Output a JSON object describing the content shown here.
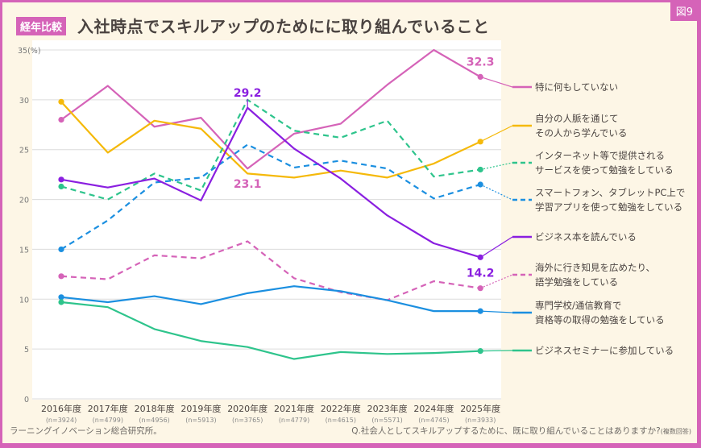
{
  "header": {
    "badge": "経年比較",
    "title": "入社時点でスキルアップのためにに取り組んでいること",
    "figure_label": "図9"
  },
  "footer": {
    "source": "ラーニングイノベーション総合研究所。",
    "question": "Q.社会人としてスキルアップするために、既に取り組んでいることはありますか?",
    "question_note": "(複数回答)"
  },
  "chart_data": {
    "type": "line",
    "title": "入社時点でスキルアップのためにに取り組んでいること",
    "ylabel": "(%)",
    "ylim": [
      0,
      35
    ],
    "yticks": [
      0,
      5,
      10,
      15,
      20,
      25,
      30,
      35
    ],
    "ytick_labels": [
      "0",
      "5",
      "10",
      "15",
      "20",
      "25",
      "30",
      "35(%)"
    ],
    "grid": true,
    "legend": "right",
    "categories": [
      "2016年度",
      "2017年度",
      "2018年度",
      "2019年度",
      "2020年度",
      "2021年度",
      "2022年度",
      "2023年度",
      "2024年度",
      "2025年度"
    ],
    "sample_sizes": [
      "(n=3924)",
      "(n=4799)",
      "(n=4956)",
      "(n=5913)",
      "(n=3765)",
      "(n=4779)",
      "(n=4615)",
      "(n=5571)",
      "(n=4745)",
      "(n=3933)"
    ],
    "series": [
      {
        "name": "特に何もしていない",
        "lines": [
          "特に何もしていない"
        ],
        "color": "#d563b8",
        "dashed": false,
        "values": [
          28.0,
          31.4,
          27.3,
          28.2,
          23.1,
          26.6,
          27.6,
          31.5,
          35.0,
          32.3
        ]
      },
      {
        "name": "自分の人脈を通じてその人から学んでいる",
        "lines": [
          "自分の人脈を通じて",
          "その人から学んでいる"
        ],
        "color": "#f5b90a",
        "dashed": false,
        "values": [
          29.8,
          24.7,
          27.9,
          27.1,
          22.6,
          22.2,
          22.9,
          22.2,
          23.6,
          25.8
        ]
      },
      {
        "name": "インターネット等で提供されるサービスを使って勉強をしている",
        "lines": [
          "インターネット等で提供される",
          "サービスを使って勉強をしている"
        ],
        "color": "#2ec48c",
        "dashed": true,
        "values": [
          21.3,
          20.0,
          22.6,
          20.9,
          30.0,
          26.9,
          26.2,
          27.9,
          22.3,
          23.0
        ]
      },
      {
        "name": "スマートフォン、タブレットPC上で学習アプリを使って勉強をしている",
        "lines": [
          "スマートフォン、タブレットPC上で",
          "学習アプリを使って勉強をしている"
        ],
        "color": "#1b8fe0",
        "dashed": true,
        "values": [
          15.0,
          17.9,
          21.7,
          22.2,
          25.5,
          23.2,
          23.9,
          23.1,
          20.1,
          21.5
        ]
      },
      {
        "name": "ビジネス本を読んでいる",
        "lines": [
          "ビジネス本を読んでいる"
        ],
        "color": "#8a1fe0",
        "dashed": false,
        "values": [
          22.0,
          21.2,
          22.1,
          19.9,
          29.2,
          25.1,
          22.1,
          18.4,
          15.6,
          14.2
        ]
      },
      {
        "name": "海外に行き知見を広めたり、語学勉強をしている",
        "lines": [
          "海外に行き知見を広めたり、",
          "語学勉強をしている"
        ],
        "color": "#d563b8",
        "dashed": true,
        "values": [
          12.3,
          12.0,
          14.4,
          14.1,
          15.8,
          12.1,
          10.7,
          9.9,
          11.8,
          11.1
        ]
      },
      {
        "name": "専門学校/通信教育で資格等の取得の勉強をしている",
        "lines": [
          "専門学校/通信教育で",
          "資格等の取得の勉強をしている"
        ],
        "color": "#1b8fe0",
        "dashed": false,
        "values": [
          10.2,
          9.7,
          10.3,
          9.5,
          10.6,
          11.3,
          10.8,
          9.9,
          8.8,
          8.8
        ]
      },
      {
        "name": "ビジネスセミナーに参加している",
        "lines": [
          "ビジネスセミナーに参加している"
        ],
        "color": "#2ec48c",
        "dashed": false,
        "values": [
          9.7,
          9.2,
          7.0,
          5.8,
          5.2,
          4.0,
          4.7,
          4.5,
          4.6,
          4.8
        ]
      }
    ],
    "annotations": [
      {
        "text": "29.2",
        "series": 4,
        "index": 4,
        "position": "above"
      },
      {
        "text": "23.1",
        "series": 0,
        "index": 4,
        "position": "below"
      },
      {
        "text": "32.3",
        "series": 0,
        "index": 9,
        "position": "above"
      },
      {
        "text": "14.2",
        "series": 4,
        "index": 9,
        "position": "below"
      }
    ]
  }
}
